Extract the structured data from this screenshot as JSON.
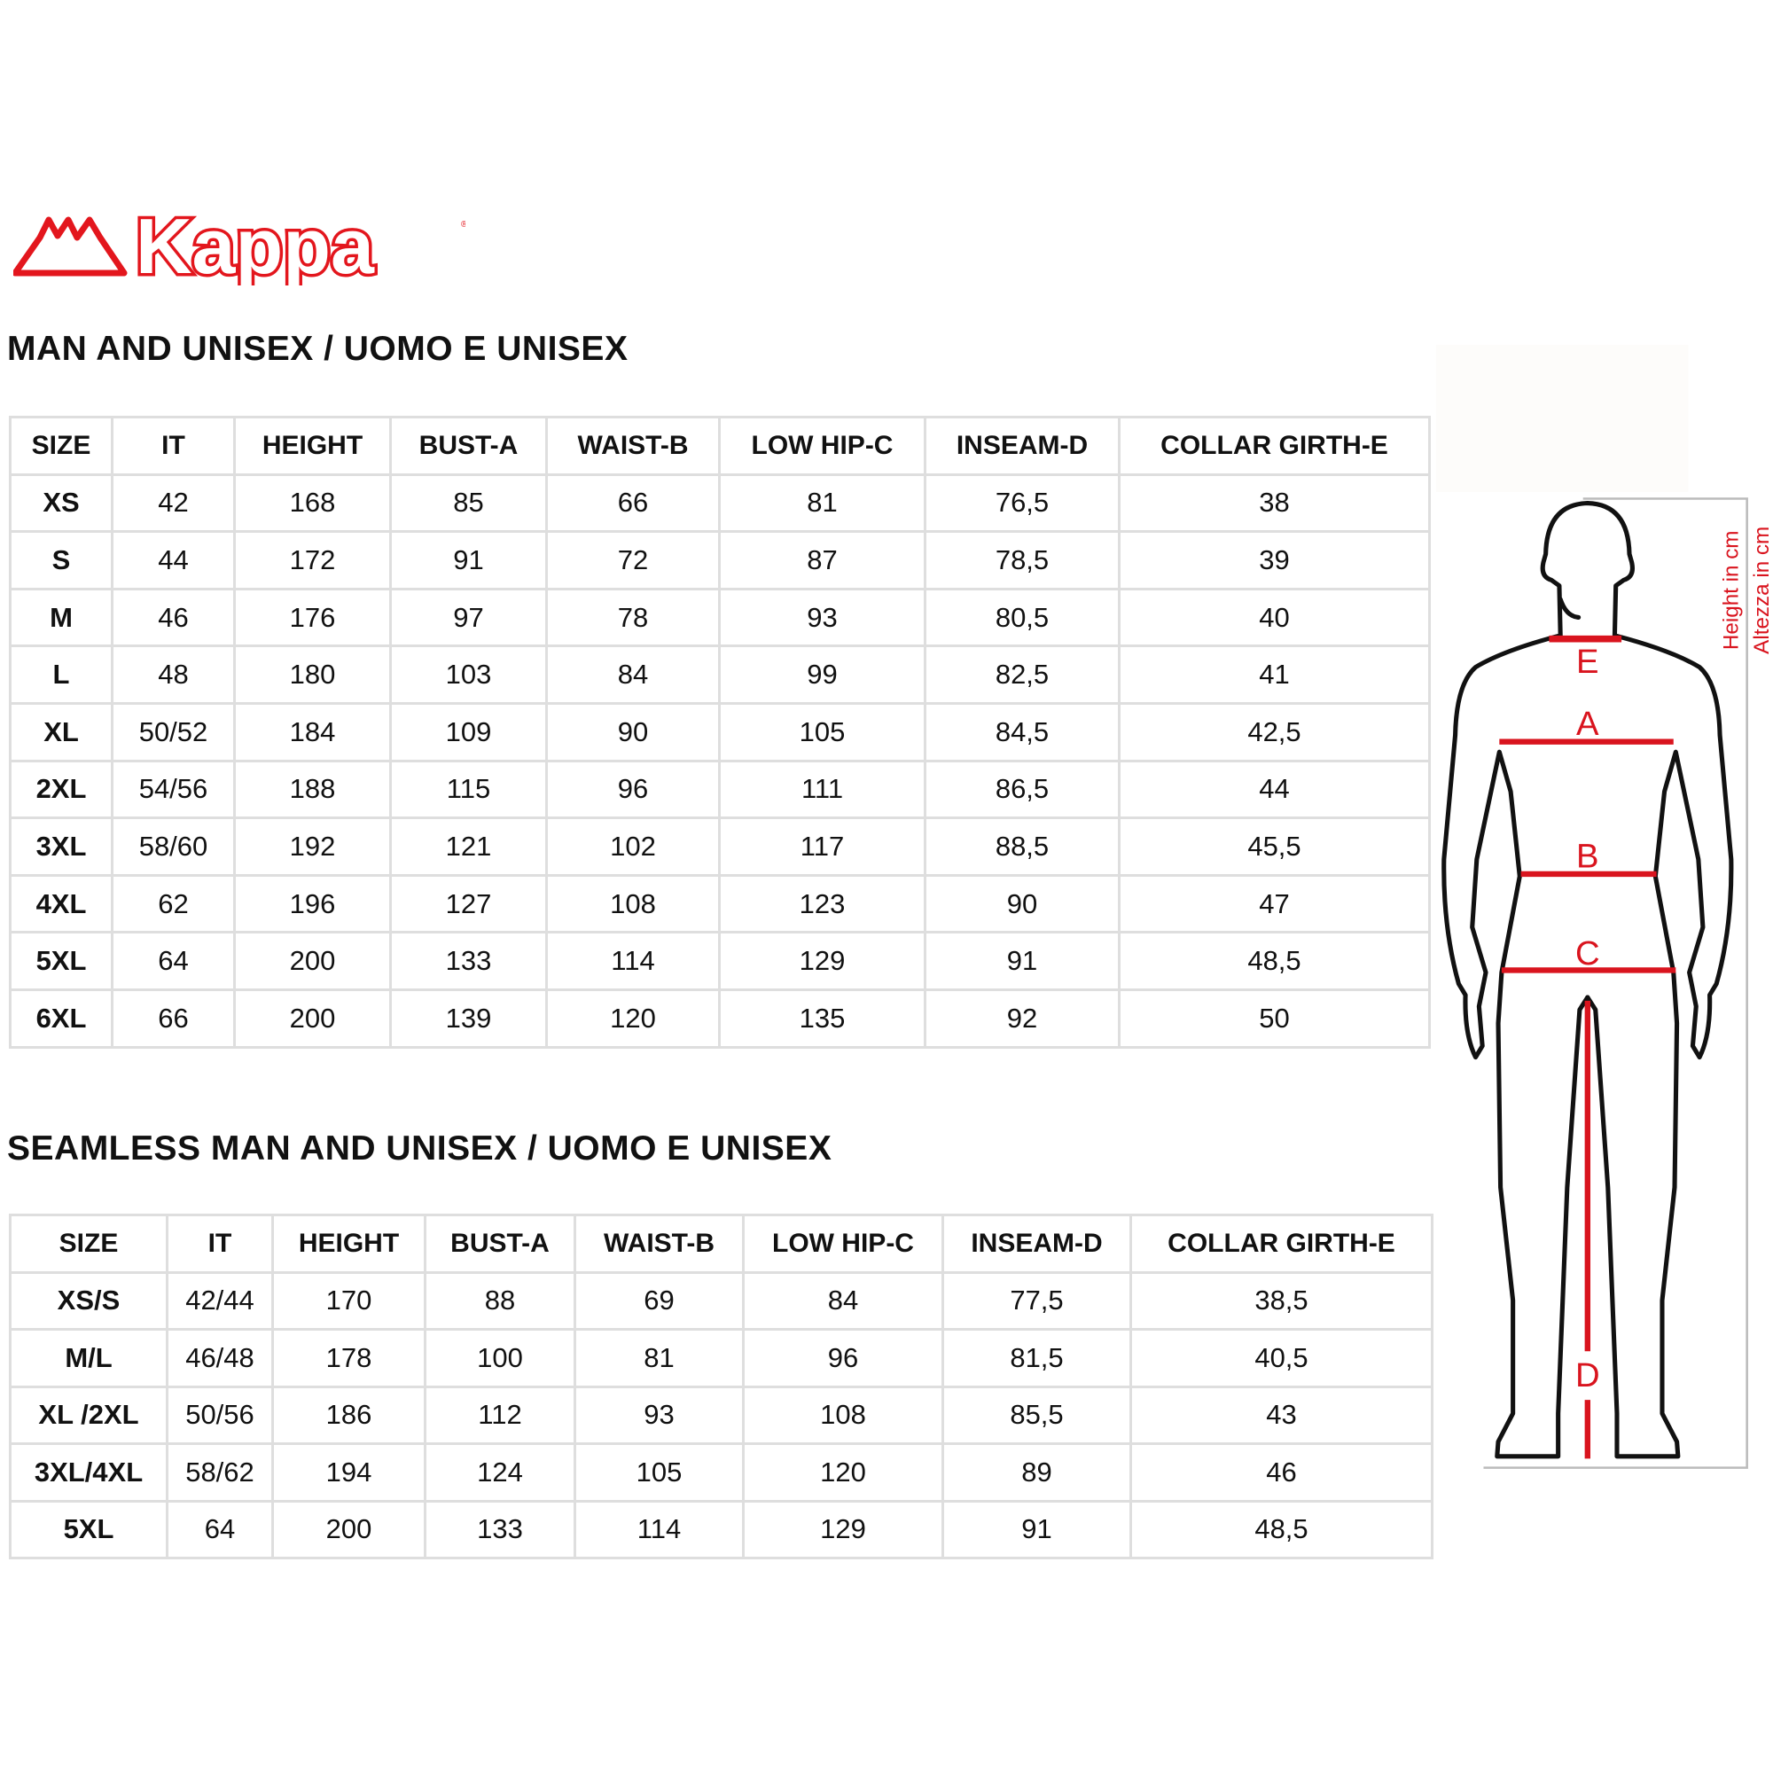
{
  "logo": {
    "text": "Kappa",
    "brand_color": "#e3161d"
  },
  "accent_color": "#d9141e",
  "section1": {
    "title": "MAN AND UNISEX / UOMO E UNISEX",
    "headers": [
      "SIZE",
      "IT",
      "HEIGHT",
      "BUST-A",
      "WAIST-B",
      "LOW HIP-C",
      "INSEAM-D",
      "COLLAR GIRTH-E"
    ],
    "rows": [
      [
        "XS",
        "42",
        "168",
        "85",
        "66",
        "81",
        "76,5",
        "38"
      ],
      [
        "S",
        "44",
        "172",
        "91",
        "72",
        "87",
        "78,5",
        "39"
      ],
      [
        "M",
        "46",
        "176",
        "97",
        "78",
        "93",
        "80,5",
        "40"
      ],
      [
        "L",
        "48",
        "180",
        "103",
        "84",
        "99",
        "82,5",
        "41"
      ],
      [
        "XL",
        "50/52",
        "184",
        "109",
        "90",
        "105",
        "84,5",
        "42,5"
      ],
      [
        "2XL",
        "54/56",
        "188",
        "115",
        "96",
        "111",
        "86,5",
        "44"
      ],
      [
        "3XL",
        "58/60",
        "192",
        "121",
        "102",
        "117",
        "88,5",
        "45,5"
      ],
      [
        "4XL",
        "62",
        "196",
        "127",
        "108",
        "123",
        "90",
        "47"
      ],
      [
        "5XL",
        "64",
        "200",
        "133",
        "114",
        "129",
        "91",
        "48,5"
      ],
      [
        "6XL",
        "66",
        "200",
        "139",
        "120",
        "135",
        "92",
        "50"
      ]
    ]
  },
  "section2": {
    "title": "SEAMLESS MAN AND UNISEX / UOMO E UNISEX",
    "headers": [
      "SIZE",
      "IT",
      "HEIGHT",
      "BUST-A",
      "WAIST-B",
      "LOW HIP-C",
      "INSEAM-D",
      "COLLAR GIRTH-E"
    ],
    "rows": [
      [
        "XS/S",
        "42/44",
        "170",
        "88",
        "69",
        "84",
        "77,5",
        "38,5"
      ],
      [
        "M/L",
        "46/48",
        "178",
        "100",
        "81",
        "96",
        "81,5",
        "40,5"
      ],
      [
        "XL /2XL",
        "50/56",
        "186",
        "112",
        "93",
        "108",
        "85,5",
        "43"
      ],
      [
        "3XL/4XL",
        "58/62",
        "194",
        "124",
        "105",
        "120",
        "89",
        "46"
      ],
      [
        "5XL",
        "64",
        "200",
        "133",
        "114",
        "129",
        "91",
        "48,5"
      ]
    ]
  },
  "figure": {
    "labels": {
      "E": "E",
      "A": "A",
      "B": "B",
      "C": "C",
      "D": "D"
    },
    "height_en": "Height in cm",
    "height_it": "Altezza in cm"
  }
}
